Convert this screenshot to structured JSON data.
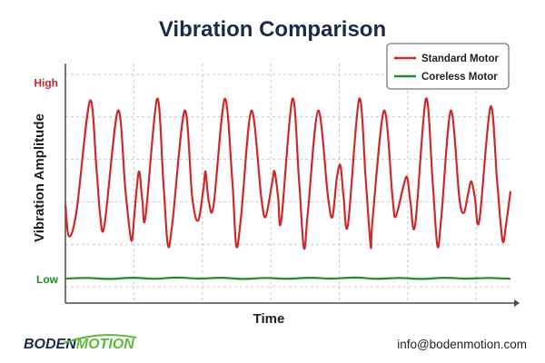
{
  "chart_data": {
    "type": "line",
    "title": "Vibration Comparison",
    "xlabel": "Time",
    "ylabel": "Vibration Amplitude",
    "y_ticks": [
      {
        "label": "High",
        "value": 1.0,
        "color": "#c8262b"
      },
      {
        "label": "Low",
        "value": 0.0,
        "color": "#1f8c2a"
      }
    ],
    "ylim": [
      -0.12,
      1.1
    ],
    "xlim": [
      0,
      1
    ],
    "grid": true,
    "legend_position": "top-right",
    "series": [
      {
        "name": "Standard Motor",
        "color": "#cc2a2a",
        "points": [
          [
            0.0,
            0.38
          ],
          [
            0.008,
            0.22
          ],
          [
            0.025,
            0.35
          ],
          [
            0.055,
            0.91
          ],
          [
            0.07,
            0.56
          ],
          [
            0.078,
            0.33
          ],
          [
            0.088,
            0.28
          ],
          [
            0.118,
            0.86
          ],
          [
            0.135,
            0.45
          ],
          [
            0.148,
            0.2
          ],
          [
            0.155,
            0.33
          ],
          [
            0.165,
            0.55
          ],
          [
            0.173,
            0.4
          ],
          [
            0.18,
            0.32
          ],
          [
            0.206,
            0.92
          ],
          [
            0.22,
            0.5
          ],
          [
            0.23,
            0.18
          ],
          [
            0.24,
            0.28
          ],
          [
            0.268,
            0.86
          ],
          [
            0.285,
            0.42
          ],
          [
            0.298,
            0.3
          ],
          [
            0.31,
            0.46
          ],
          [
            0.315,
            0.55
          ],
          [
            0.322,
            0.4
          ],
          [
            0.333,
            0.38
          ],
          [
            0.358,
            0.92
          ],
          [
            0.375,
            0.5
          ],
          [
            0.384,
            0.17
          ],
          [
            0.395,
            0.33
          ],
          [
            0.418,
            0.86
          ],
          [
            0.44,
            0.42
          ],
          [
            0.45,
            0.32
          ],
          [
            0.465,
            0.5
          ],
          [
            0.47,
            0.55
          ],
          [
            0.478,
            0.42
          ],
          [
            0.485,
            0.3
          ],
          [
            0.51,
            0.92
          ],
          [
            0.525,
            0.5
          ],
          [
            0.536,
            0.16
          ],
          [
            0.545,
            0.35
          ],
          [
            0.568,
            0.86
          ],
          [
            0.59,
            0.42
          ],
          [
            0.6,
            0.32
          ],
          [
            0.61,
            0.52
          ],
          [
            0.618,
            0.58
          ],
          [
            0.625,
            0.42
          ],
          [
            0.635,
            0.28
          ],
          [
            0.66,
            0.92
          ],
          [
            0.675,
            0.5
          ],
          [
            0.686,
            0.17
          ],
          [
            0.69,
            0.3
          ],
          [
            0.716,
            0.86
          ],
          [
            0.735,
            0.42
          ],
          [
            0.742,
            0.32
          ],
          [
            0.76,
            0.48
          ],
          [
            0.768,
            0.52
          ],
          [
            0.775,
            0.4
          ],
          [
            0.786,
            0.28
          ],
          [
            0.81,
            0.92
          ],
          [
            0.825,
            0.5
          ],
          [
            0.836,
            0.17
          ],
          [
            0.845,
            0.33
          ],
          [
            0.866,
            0.86
          ],
          [
            0.885,
            0.42
          ],
          [
            0.895,
            0.34
          ],
          [
            0.905,
            0.44
          ],
          [
            0.912,
            0.5
          ],
          [
            0.92,
            0.42
          ],
          [
            0.93,
            0.3
          ],
          [
            0.955,
            0.88
          ],
          [
            0.97,
            0.5
          ],
          [
            0.982,
            0.2
          ],
          [
            0.99,
            0.28
          ],
          [
            1.0,
            0.45
          ]
        ]
      },
      {
        "name": "Coreless Motor",
        "color": "#1f8c2a",
        "points": [
          [
            0.0,
            0.005
          ],
          [
            0.05,
            0.008
          ],
          [
            0.1,
            0.003
          ],
          [
            0.15,
            0.009
          ],
          [
            0.2,
            0.004
          ],
          [
            0.25,
            0.01
          ],
          [
            0.3,
            0.005
          ],
          [
            0.35,
            0.009
          ],
          [
            0.4,
            0.003
          ],
          [
            0.45,
            0.008
          ],
          [
            0.5,
            0.004
          ],
          [
            0.55,
            0.009
          ],
          [
            0.6,
            0.005
          ],
          [
            0.65,
            0.01
          ],
          [
            0.7,
            0.004
          ],
          [
            0.75,
            0.008
          ],
          [
            0.8,
            0.003
          ],
          [
            0.85,
            0.009
          ],
          [
            0.9,
            0.005
          ],
          [
            0.95,
            0.008
          ],
          [
            1.0,
            0.004
          ]
        ]
      }
    ]
  },
  "footer": {
    "logo_part1": "BODEN",
    "logo_part2": "MOTION",
    "email": "info@bodenmotion.com"
  }
}
